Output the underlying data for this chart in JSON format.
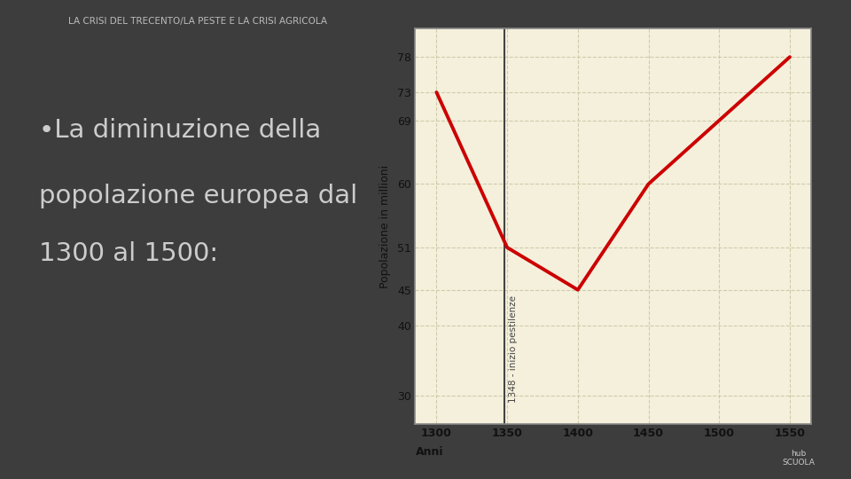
{
  "bg_color": "#3d3d3d",
  "chart_bg_color": "#f5f0dc",
  "chart_border_color": "#cccccc",
  "title": "LA CRISI DEL TRECENTO/LA PESTE E LA CRISI AGRICOLA",
  "title_color": "#bbbbbb",
  "title_fontsize": 7.5,
  "bullet_text_lines": [
    "•La diminuzione della",
    "popolazione europea dal",
    "1300 al 1500:"
  ],
  "bullet_text_color": "#cccccc",
  "bullet_fontsize": 21,
  "x_data": [
    1300,
    1350,
    1400,
    1450,
    1500,
    1550
  ],
  "y_data": [
    73,
    51,
    45,
    60,
    69,
    78
  ],
  "line_color": "#cc0000",
  "line_width": 2.8,
  "ylabel": "Popolazione in millioni",
  "xlabel": "Anni",
  "ylabel_fontsize": 9,
  "xlabel_fontsize": 9,
  "yticks": [
    30,
    40,
    45,
    51,
    60,
    69,
    73,
    78
  ],
  "xticks": [
    1300,
    1350,
    1400,
    1450,
    1500,
    1550
  ],
  "xlim": [
    1285,
    1565
  ],
  "ylim": [
    26,
    82
  ],
  "grid_color": "#ccccaa",
  "vline_x": 1348,
  "vline_label": "1348 - inizio pestilenze",
  "vline_color": "#444444",
  "hub_text": "hub\nSCUOLA",
  "hub_color": "#cccccc"
}
